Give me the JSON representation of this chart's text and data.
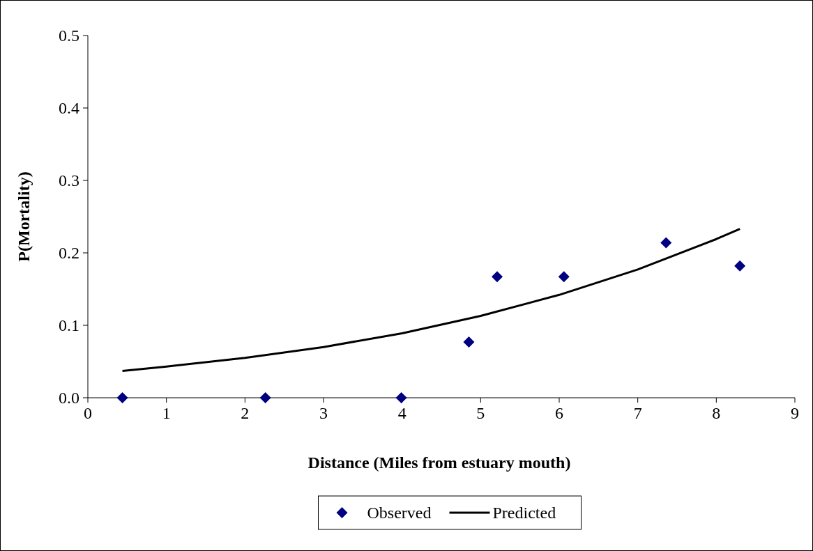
{
  "chart_data": {
    "type": "scatter",
    "xlabel": "Distance (Miles from estuary mouth)",
    "ylabel": "P(Mortality)",
    "xlim": [
      0,
      9
    ],
    "xticks": [
      0,
      1,
      2,
      3,
      4,
      5,
      6,
      7,
      8,
      9
    ],
    "ylim": [
      0,
      0.5
    ],
    "yticks": [
      {
        "value": 0,
        "label": "0.0"
      },
      0.1,
      0.2,
      0.3,
      0.4,
      0.5
    ],
    "grid": false,
    "legend": "bottom",
    "series": [
      {
        "name": "Observed",
        "marker": "diamond",
        "color": "#000080",
        "x": [
          0.44,
          2.26,
          3.99,
          4.85,
          5.21,
          6.06,
          7.36,
          8.3
        ],
        "values": [
          0,
          0,
          0,
          0.077,
          0.167,
          0.167,
          0.214,
          0.182
        ]
      },
      {
        "name": "Predicted",
        "type": "line",
        "marker": "none",
        "line_style": "solid",
        "color": "#000000",
        "x": [
          0.44,
          1,
          2,
          3,
          4,
          5,
          6,
          7,
          8,
          8.3
        ],
        "values": [
          0.037,
          0.043,
          0.055,
          0.07,
          0.089,
          0.113,
          0.142,
          0.177,
          0.219,
          0.233
        ]
      }
    ]
  }
}
